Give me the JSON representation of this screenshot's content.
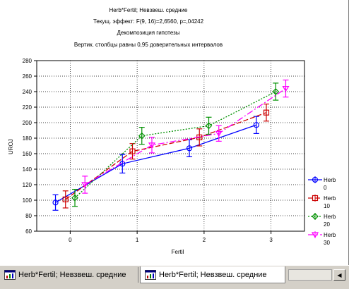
{
  "chart_data": {
    "type": "line",
    "title_lines": [
      "Herb*Fertil; Невзвеш. средние",
      "Текущ.  эффект: F(9, 16)=2,6560, p=,04242",
      "Декомпозиция гипотезы",
      "Вертик. столбцы равны 0,95 доверительных интервалов"
    ],
    "xlabel": "Fertil",
    "ylabel": "UROJ",
    "x_ticks": [
      "0",
      "1",
      "2",
      "3"
    ],
    "y_ticks": [
      60,
      80,
      100,
      120,
      140,
      160,
      180,
      200,
      220,
      240,
      260,
      280
    ],
    "ylim": [
      60,
      280
    ],
    "xlim": [
      -0.5,
      3.5
    ],
    "grid": true,
    "legend_position": "right",
    "series": [
      {
        "name": "Herb 0",
        "legend_top": "Herb",
        "legend_bottom": "0",
        "color": "#0000ff",
        "dash": "",
        "marker": "circle",
        "x_offset": -0.22,
        "points": [
          97,
          147,
          167,
          197
        ],
        "err": [
          10,
          12,
          11,
          11
        ]
      },
      {
        "name": "Herb 10",
        "legend_top": "Herb",
        "legend_bottom": "10",
        "color": "#cc0000",
        "dash": "7,3",
        "marker": "square",
        "x_offset": -0.07,
        "points": [
          101,
          163,
          181,
          213
        ],
        "err": [
          11,
          10,
          11,
          11
        ]
      },
      {
        "name": "Herb 20",
        "legend_top": "Herb",
        "legend_bottom": "20",
        "color": "#009000",
        "dash": "2,2",
        "marker": "diamond",
        "x_offset": 0.07,
        "points": [
          103,
          183,
          196,
          240
        ],
        "err": [
          11,
          11,
          11,
          11
        ]
      },
      {
        "name": "Herb 30",
        "legend_top": "Herb",
        "legend_bottom": "30",
        "color": "#ff00ff",
        "dash": "9,3,2,3",
        "marker": "triangle",
        "x_offset": 0.22,
        "points": [
          120,
          171,
          186,
          244
        ],
        "err": [
          11,
          10,
          10,
          11
        ]
      }
    ]
  },
  "tabs": [
    {
      "label": "Herb*Fertil; Невзвеш. средние",
      "active": false,
      "icon": "graph-icon"
    },
    {
      "label": "Herb*Fertil; Невзвеш. средние",
      "active": true,
      "icon": "graph-icon"
    }
  ],
  "scroll_left_symbol": "◀"
}
